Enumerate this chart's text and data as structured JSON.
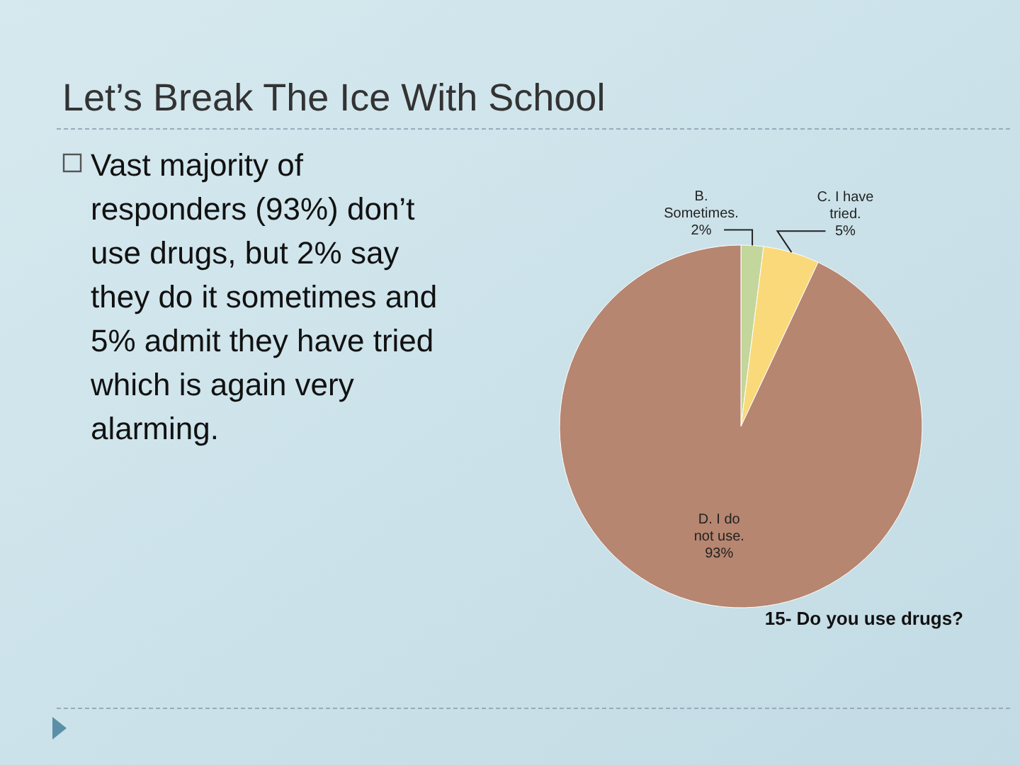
{
  "chart_data": {
    "type": "pie",
    "title": "Let’s Break The Ice With School",
    "subtitle": "15- Do you use drugs?",
    "annotations": [
      "Vast majority of responders (93%) don’t use drugs, but 2% say they do it sometimes and 5% admit they have tried which is again very alarming."
    ],
    "categories": [
      "B. Sometimes.",
      "C. I have tried.",
      "D. I do not use."
    ],
    "values": [
      2,
      5,
      93
    ],
    "colors": [
      "#c3d69b",
      "#fad97a",
      "#b68670"
    ],
    "value_labels": [
      "2%",
      "5%",
      "93%"
    ]
  }
}
